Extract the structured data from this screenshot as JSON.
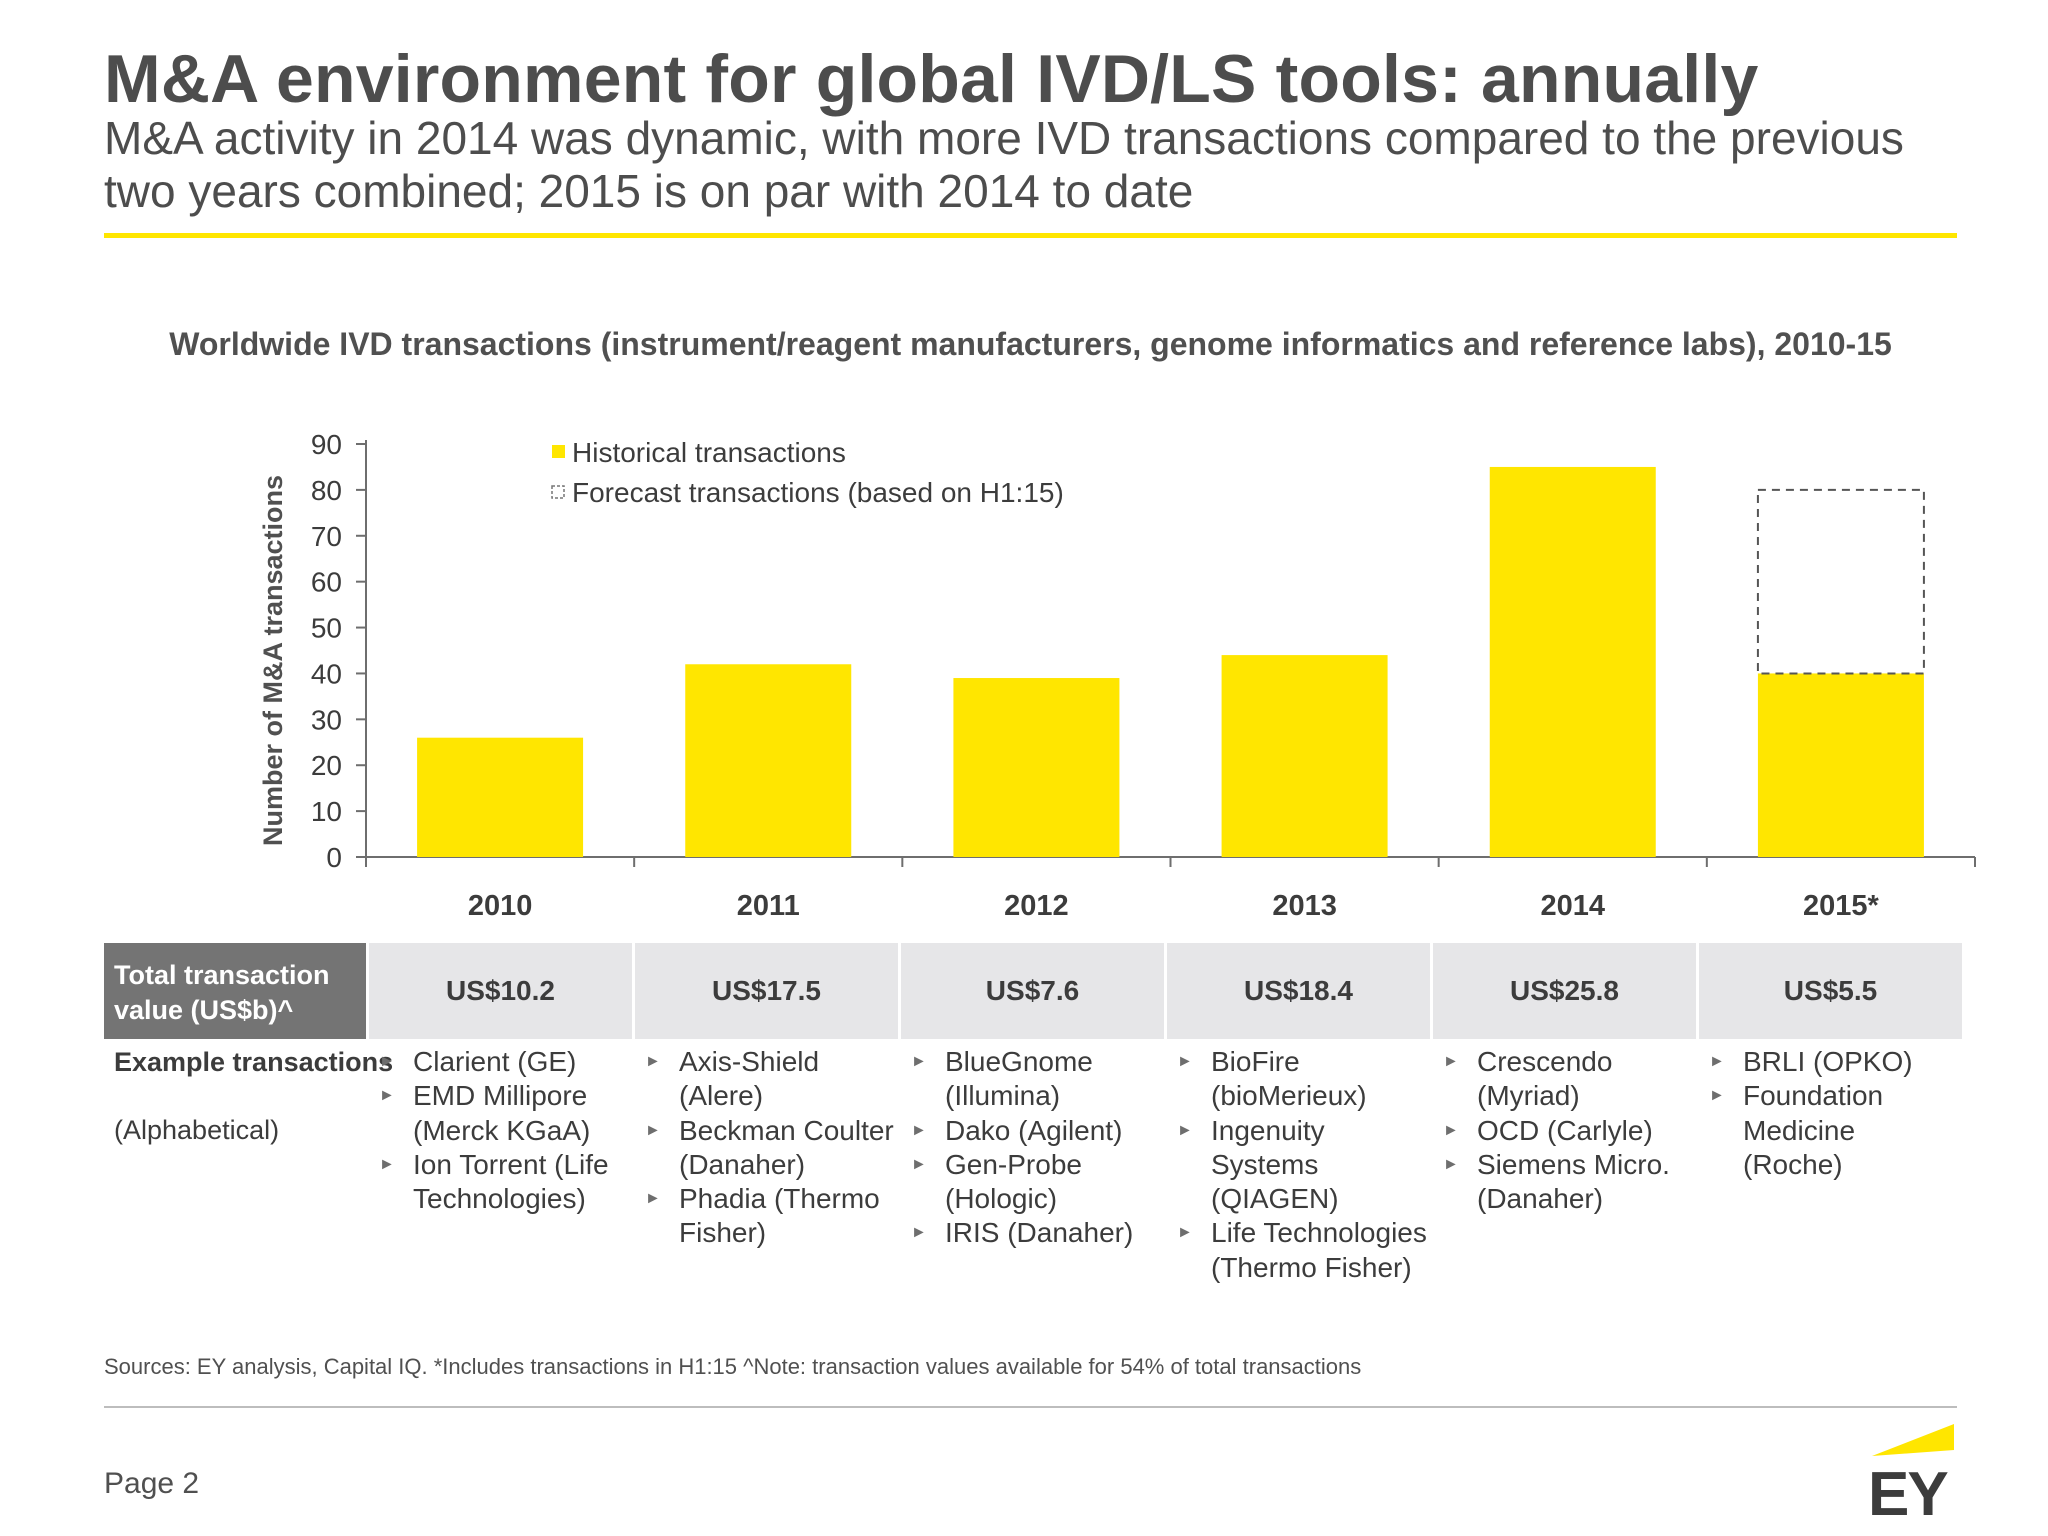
{
  "page": {
    "title": "M&A environment for global IVD/LS tools: annually",
    "subtitle": "M&A activity in 2014 was dynamic, with more IVD transactions compared to the previous two years combined; 2015 is on par with 2014 to date",
    "sources": "Sources: EY analysis, Capital IQ. *Includes transactions in H1:15 ^Note: transaction values available for 54% of total transactions",
    "page_label": "Page 2",
    "logo_text": "EY"
  },
  "colors": {
    "accent_yellow": "#ffe600",
    "dark_grey": "#747474",
    "light_grey": "#e6e6e8"
  },
  "chart_data": {
    "type": "bar",
    "title": "Worldwide IVD transactions (instrument/reagent manufacturers, genome informatics and reference labs), 2010-15",
    "ylabel": "Number of M&A transactions",
    "xlabel": "",
    "ylim": [
      0,
      90
    ],
    "yticks": [
      0,
      10,
      20,
      30,
      40,
      50,
      60,
      70,
      80,
      90
    ],
    "categories": [
      "2010",
      "2011",
      "2012",
      "2013",
      "2014",
      "2015*"
    ],
    "series": [
      {
        "name": "Historical transactions",
        "values": [
          26,
          42,
          39,
          44,
          85,
          40
        ],
        "color": "#ffe600"
      },
      {
        "name": "Forecast transactions (based on H1:15)",
        "values": [
          null,
          null,
          null,
          null,
          null,
          40
        ],
        "style": "dashed-outline",
        "stacked_on": "Historical transactions"
      }
    ],
    "legend_position": "top-left",
    "grid": false
  },
  "table": {
    "total_value_label": "Total transaction value (US$b)^",
    "total_values": [
      "US$10.2",
      "US$17.5",
      "US$7.6",
      "US$18.4",
      "US$25.8",
      "US$5.5"
    ],
    "example_label": "Example transactions",
    "example_sublabel": "(Alphabetical)",
    "examples": [
      [
        "Clarient (GE)",
        "EMD Millipore (Merck KGaA)",
        "Ion Torrent (Life Technologies)"
      ],
      [
        "Axis-Shield (Alere)",
        "Beckman Coulter (Danaher)",
        "Phadia (Thermo Fisher)"
      ],
      [
        "BlueGnome (Illumina)",
        "Dako (Agilent)",
        "Gen-Probe (Hologic)",
        "IRIS (Danaher)"
      ],
      [
        "BioFire (bioMerieux)",
        "Ingenuity Systems (QIAGEN)",
        "Life Technologies (Thermo Fisher)"
      ],
      [
        "Crescendo (Myriad)",
        "OCD (Carlyle)",
        "Siemens Micro. (Danaher)"
      ],
      [
        "BRLI (OPKO)",
        "Foundation Medicine (Roche)"
      ]
    ]
  }
}
